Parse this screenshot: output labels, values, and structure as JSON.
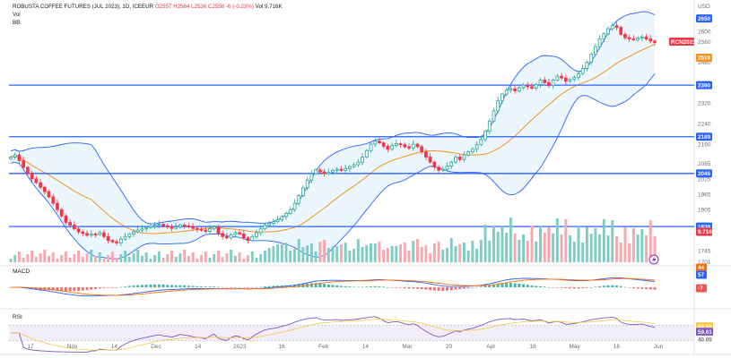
{
  "header": {
    "instrument": "ROBUSTA COFFEE FUTURES (JUL 2023), 1D, ICEEUR",
    "ohlc": "O2557 H2564 L2536 C2556 -6 (-0.23%)",
    "volume": "Vol 9.716K",
    "row2": "Vol",
    "row3": "BB"
  },
  "currency": "USD",
  "chart_data": {
    "type": "candlestick",
    "title": "ROBUSTA COFFEE FUTURES (JUL 2023), 1D, ICEEUR",
    "price_axis": {
      "ticks": [
        2600,
        2560,
        2480,
        2400,
        2320,
        2240,
        2160,
        2085,
        2025,
        1965,
        1905,
        1825,
        1745,
        1701
      ],
      "tick_labels": [
        "2600",
        "2560",
        "2480",
        "2400",
        "2320",
        "2240",
        "2160",
        "2085",
        "2025",
        "1965",
        "1905",
        "1825",
        "1745",
        "1701"
      ],
      "range": [
        1700,
        2680
      ]
    },
    "time_axis": {
      "labels": [
        "17",
        "Nov",
        "14",
        "Dec",
        "14",
        "2023",
        "16",
        "Feb",
        "14",
        "Mar",
        "20",
        "Apr",
        "18",
        "May",
        "16",
        "Jun"
      ]
    },
    "price_badges": [
      {
        "value": "2650",
        "color": "#2962ff"
      },
      {
        "value": "RCN2023",
        "color": "#f23645"
      },
      {
        "value": "2518",
        "color": "#f7931a"
      },
      {
        "value": "2390",
        "color": "#2962ff"
      },
      {
        "value": "2189",
        "color": "#2962ff"
      },
      {
        "value": "2046",
        "color": "#2962ff"
      },
      {
        "value": "1839",
        "color": "#2962ff"
      },
      {
        "value": "9.716K",
        "color": "#f23645"
      }
    ],
    "horizontal_levels": [
      2390,
      2189,
      2046,
      1839
    ],
    "candles_close": [
      2110,
      2118,
      2096,
      2070,
      2047,
      2025,
      2010,
      1992,
      1975,
      1955,
      1930,
      1905,
      1880,
      1855,
      1845,
      1830,
      1818,
      1812,
      1805,
      1810,
      1808,
      1815,
      1800,
      1785,
      1780,
      1775,
      1790,
      1800,
      1810,
      1818,
      1825,
      1830,
      1835,
      1840,
      1845,
      1848,
      1842,
      1838,
      1832,
      1838,
      1845,
      1842,
      1838,
      1832,
      1828,
      1825,
      1820,
      1830,
      1838,
      1812,
      1800,
      1795,
      1808,
      1815,
      1810,
      1795,
      1785,
      1800,
      1815,
      1830,
      1845,
      1852,
      1858,
      1866,
      1878,
      1890,
      1905,
      1930,
      1960,
      1990,
      2020,
      2045,
      2060,
      2052,
      2045,
      2050,
      2058,
      2062,
      2058,
      2065,
      2072,
      2080,
      2090,
      2110,
      2135,
      2160,
      2172,
      2165,
      2152,
      2140,
      2155,
      2162,
      2158,
      2150,
      2145,
      2160,
      2150,
      2130,
      2110,
      2090,
      2070,
      2058,
      2062,
      2075,
      2090,
      2110,
      2100,
      2118,
      2130,
      2140,
      2158,
      2178,
      2210,
      2250,
      2290,
      2330,
      2355,
      2370,
      2376,
      2368,
      2380,
      2390,
      2384,
      2378,
      2392,
      2410,
      2400,
      2388,
      2410,
      2425,
      2418,
      2405,
      2412,
      2420,
      2435,
      2455,
      2480,
      2510,
      2540,
      2570,
      2590,
      2610,
      2622,
      2615,
      2588,
      2575,
      2570,
      2568,
      2574,
      2578,
      2570,
      2562,
      2556
    ],
    "bollinger": {
      "upper_range": [
        2480,
        2625
      ],
      "middle_end": 2518,
      "lower_end": 2390
    },
    "volume_last": "9.716K",
    "macd": {
      "badges": [
        "44",
        "57",
        "-7"
      ]
    },
    "rsi": {
      "badges": [
        "64.55",
        "59.61",
        "40.00"
      ]
    }
  },
  "colors": {
    "up": "#26a69a",
    "down": "#f23645",
    "bb_band": "#2962ff",
    "bb_fill": "#e3f2fd",
    "bb_mid": "#f7931a",
    "level": "#2962ff",
    "macd_line": "#2962ff",
    "signal_line": "#ff6d00",
    "rsi_line": "#7e57c2"
  },
  "panes": {
    "macd": "MACD",
    "rsi": "RSI"
  },
  "icons": {
    "alert": "lightning-icon"
  }
}
